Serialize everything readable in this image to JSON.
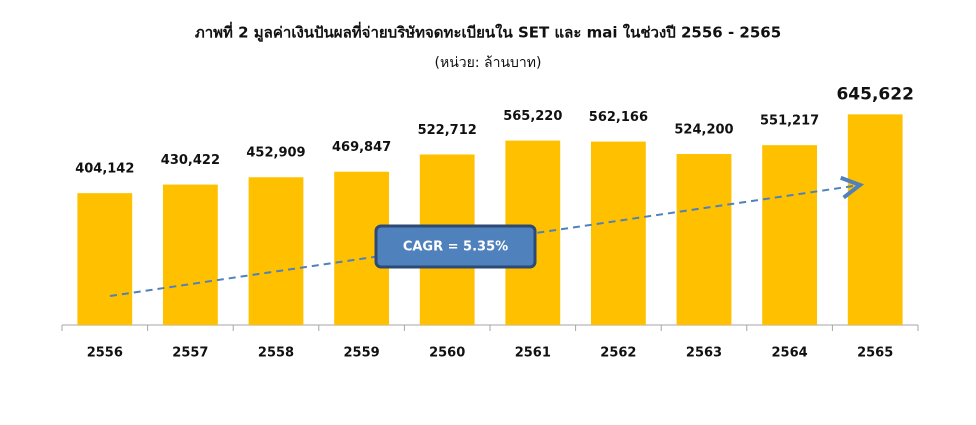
{
  "chart_data": {
    "type": "bar",
    "title": "ภาพที่ 2 มูลค่าเงินปันผลที่จ่ายบริษัทจดทะเบียนใน  SET และ mai ในช่วงปี 2556 - 2565",
    "subtitle": "(หน่วย:   ล้านบาท)",
    "categories": [
      "2556",
      "2557",
      "2558",
      "2559",
      "2560",
      "2561",
      "2562",
      "2563",
      "2564",
      "2565"
    ],
    "values": [
      404142,
      430422,
      452909,
      469847,
      522712,
      565220,
      562166,
      524200,
      551217,
      645622
    ],
    "value_labels": [
      "404,142",
      "430,422",
      "452,909",
      "469,847",
      "522,712",
      "565,220",
      "562,166",
      "524,200",
      "551,217",
      "645,622"
    ],
    "color": "#ffc000",
    "ylim": [
      0,
      800000
    ],
    "annotation": "CAGR = 5.35%"
  }
}
